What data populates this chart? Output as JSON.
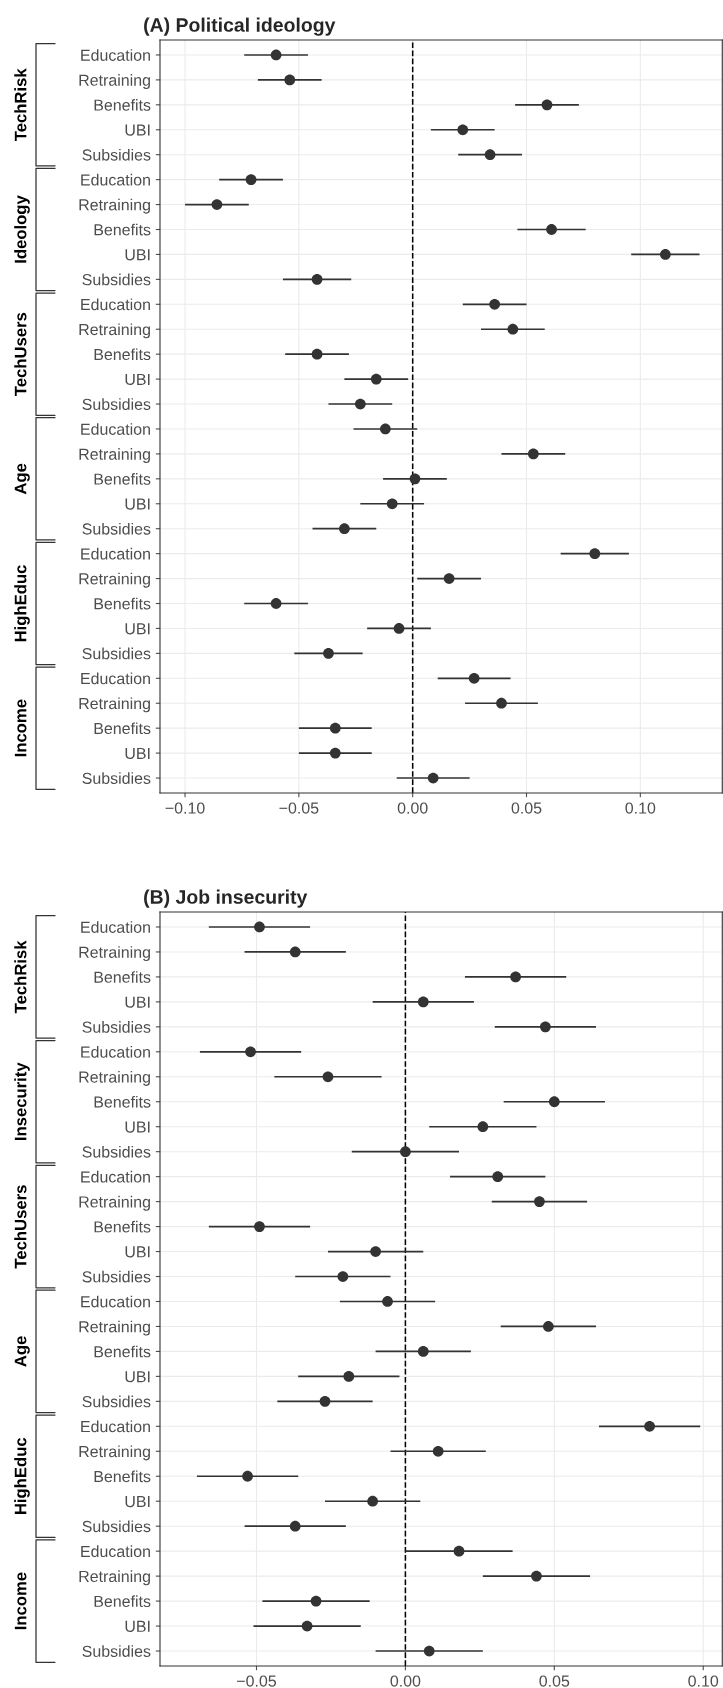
{
  "chart_data": [
    {
      "type": "scatter",
      "orientation": "horizontal",
      "title": "(A) Political ideology",
      "categories": [
        "Education",
        "Retraining",
        "Benefits",
        "UBI",
        "Subsidies",
        "Education",
        "Retraining",
        "Benefits",
        "UBI",
        "Subsidies",
        "Education",
        "Retraining",
        "Benefits",
        "UBI",
        "Subsidies",
        "Education",
        "Retraining",
        "Benefits",
        "UBI",
        "Subsidies",
        "Education",
        "Retraining",
        "Benefits",
        "UBI",
        "Subsidies",
        "Education",
        "Retraining",
        "Benefits",
        "UBI",
        "Subsidies"
      ],
      "values": [
        -0.06,
        -0.054,
        0.059,
        0.022,
        0.034,
        -0.071,
        -0.086,
        0.061,
        0.111,
        -0.042,
        0.036,
        0.044,
        -0.042,
        -0.016,
        -0.023,
        -0.012,
        0.053,
        0.001,
        -0.009,
        -0.03,
        0.08,
        0.016,
        -0.06,
        -0.006,
        -0.037,
        0.027,
        0.039,
        -0.034,
        -0.034,
        0.009
      ],
      "errors": [
        0.014,
        0.014,
        0.014,
        0.014,
        0.014,
        0.014,
        0.014,
        0.015,
        0.015,
        0.015,
        0.014,
        0.014,
        0.014,
        0.014,
        0.014,
        0.014,
        0.014,
        0.014,
        0.014,
        0.014,
        0.015,
        0.014,
        0.014,
        0.014,
        0.015,
        0.016,
        0.016,
        0.016,
        0.016,
        0.016
      ],
      "color": "#333333",
      "marker": "circle",
      "annotations": [
        "TechRisk",
        "Ideology",
        "TechUsers",
        "Age",
        "HighEduc",
        "Income"
      ],
      "xlim": [
        -0.111,
        0.136
      ],
      "xticks": [
        {
          "value": -0.1,
          "label": "−0.10"
        },
        {
          "value": -0.05,
          "label": "−0.05"
        },
        {
          "value": 0,
          "label": "0.00"
        },
        {
          "value": 0.05,
          "label": "0.05"
        },
        {
          "value": 0.1,
          "label": "0.10"
        }
      ],
      "ref_lines": [
        {
          "axis": "x",
          "value": 0,
          "color": "#000000",
          "line_style": "dashed"
        }
      ],
      "grid": true
    },
    {
      "type": "scatter",
      "orientation": "horizontal",
      "title": "(B) Job insecurity",
      "categories": [
        "Education",
        "Retraining",
        "Benefits",
        "UBI",
        "Subsidies",
        "Education",
        "Retraining",
        "Benefits",
        "UBI",
        "Subsidies",
        "Education",
        "Retraining",
        "Benefits",
        "UBI",
        "Subsidies",
        "Education",
        "Retraining",
        "Benefits",
        "UBI",
        "Subsidies",
        "Education",
        "Retraining",
        "Benefits",
        "UBI",
        "Subsidies",
        "Education",
        "Retraining",
        "Benefits",
        "UBI",
        "Subsidies"
      ],
      "values": [
        -0.049,
        -0.037,
        0.037,
        0.006,
        0.047,
        -0.052,
        -0.026,
        0.05,
        0.026,
        0.0,
        0.031,
        0.045,
        -0.049,
        -0.01,
        -0.021,
        -0.006,
        0.048,
        0.006,
        -0.019,
        -0.027,
        0.082,
        0.011,
        -0.053,
        -0.011,
        -0.037,
        0.018,
        0.044,
        -0.03,
        -0.033,
        0.008
      ],
      "errors": [
        0.017,
        0.017,
        0.017,
        0.017,
        0.017,
        0.017,
        0.018,
        0.017,
        0.018,
        0.018,
        0.016,
        0.016,
        0.017,
        0.016,
        0.016,
        0.016,
        0.016,
        0.016,
        0.017,
        0.016,
        0.017,
        0.016,
        0.017,
        0.016,
        0.017,
        0.018,
        0.018,
        0.018,
        0.018,
        0.018
      ],
      "color": "#333333",
      "marker": "circle",
      "annotations": [
        "TechRisk",
        "Insecurity",
        "TechUsers",
        "Age",
        "HighEduc",
        "Income"
      ],
      "xlim": [
        -0.0824,
        0.1064
      ],
      "xticks": [
        {
          "value": -0.05,
          "label": "−0.05"
        },
        {
          "value": 0,
          "label": "0.00"
        },
        {
          "value": 0.05,
          "label": "0.05"
        },
        {
          "value": 0.1,
          "label": "0.10"
        }
      ],
      "ref_lines": [
        {
          "axis": "x",
          "value": 0,
          "color": "#000000",
          "line_style": "dashed"
        }
      ],
      "grid": true
    }
  ]
}
